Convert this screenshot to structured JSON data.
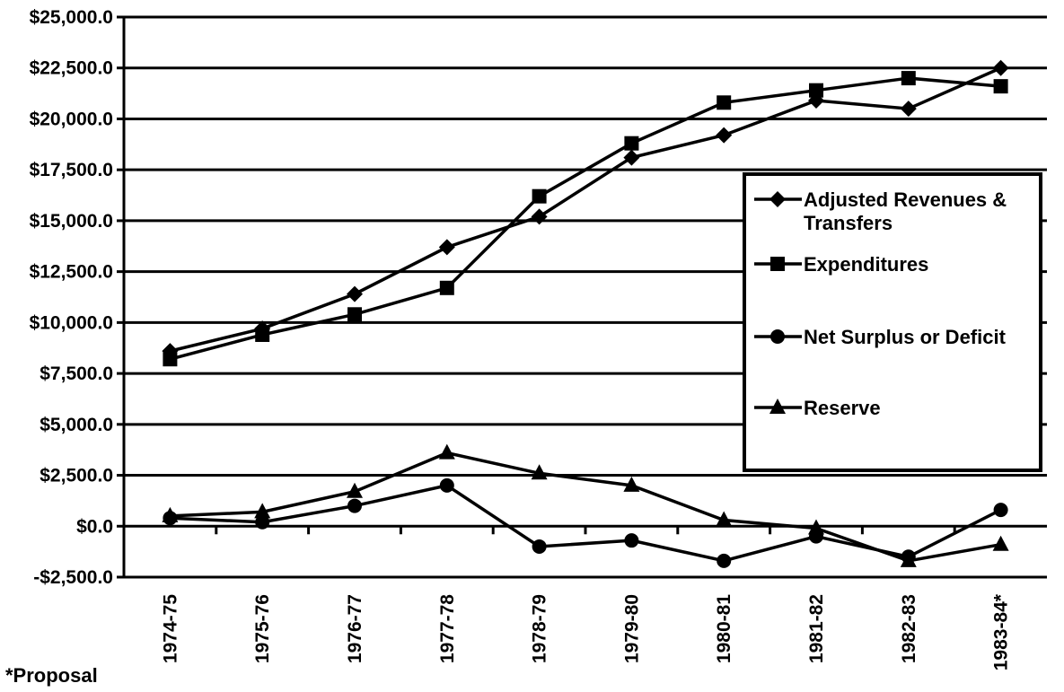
{
  "chart_data": {
    "type": "line",
    "categories": [
      "1974-75",
      "1975-76",
      "1976-77",
      "1977-78",
      "1978-79",
      "1979-80",
      "1980-81",
      "1981-82",
      "1982-83",
      "1983-84*"
    ],
    "ylim": [
      -2500,
      25000
    ],
    "yticks": [
      25000,
      22500,
      20000,
      17500,
      15000,
      12500,
      10000,
      7500,
      5000,
      2500,
      0,
      -2500
    ],
    "ytick_labels": [
      "$25,000.0",
      "$22,500.0",
      "$20,000.0",
      "$17,500.0",
      "$15,000.0",
      "$12,500.0",
      "$10,000.0",
      "$7,500.0",
      "$5,000.0",
      "$2,500.0",
      "$0.0",
      "-$2,500.0"
    ],
    "grid": true,
    "legend_position": "right",
    "series": [
      {
        "name": "Adjusted Revenues & Transfers",
        "marker": "diamond",
        "values": [
          8600,
          9700,
          11400,
          13700,
          15200,
          18100,
          19200,
          20900,
          20500,
          22500
        ]
      },
      {
        "name": "Expenditures",
        "marker": "square",
        "values": [
          8200,
          9400,
          10400,
          11700,
          16200,
          18800,
          20800,
          21400,
          22000,
          21600
        ]
      },
      {
        "name": "Net Surplus or Deficit",
        "marker": "circle",
        "values": [
          400,
          200,
          1000,
          2000,
          -1000,
          -700,
          -1700,
          -500,
          -1500,
          800
        ]
      },
      {
        "name": "Reserve",
        "marker": "triangle",
        "values": [
          500,
          700,
          1700,
          3600,
          2600,
          2000,
          300,
          -100,
          -1700,
          -900
        ]
      }
    ],
    "legend_labels": [
      [
        "Adjusted Revenues &",
        "Transfers"
      ],
      [
        "Expenditures"
      ],
      [
        "Net Surplus or Deficit"
      ],
      [
        "Reserve"
      ]
    ],
    "footnote": "*Proposal"
  }
}
